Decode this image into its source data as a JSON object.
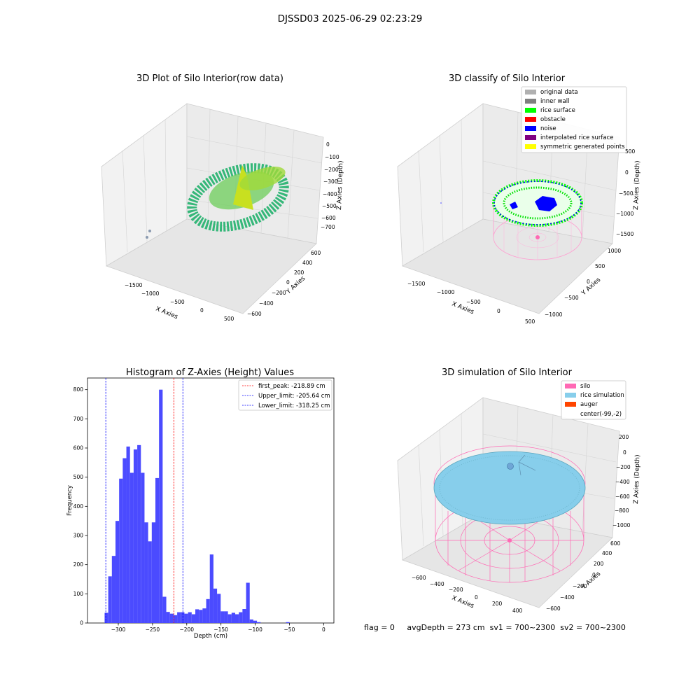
{
  "figure": {
    "suptitle": "DJSSD03 2025-06-29 02:23:29",
    "status_line": "flag = 0     avgDepth = 273 cm  sv1 = 700~2300  sv2 = 700~2300"
  },
  "colors": {
    "silo": "#ff69b4",
    "rice_sim": "#87ceeb",
    "auger": "#ff4500",
    "hist": "#4b4bff",
    "noise": "#0000ff",
    "rice_surface": "#00ff00"
  },
  "panels": {
    "raw": {
      "title": "3D Plot of Silo Interior(row data)",
      "xlabel": "X Axies",
      "ylabel": "Y Axies",
      "zlabel": "Z Axies (Depth)",
      "xticks": [
        "−1500",
        "−1000",
        "−500",
        "0",
        "500"
      ],
      "yticks": [
        "−600",
        "−400",
        "−200",
        "0",
        "200",
        "400",
        "600"
      ],
      "zticks": [
        "0",
        "−100",
        "−200",
        "−300",
        "−400",
        "−500",
        "−600",
        "−700"
      ]
    },
    "classify": {
      "title": "3D classify of Silo Interior",
      "xlabel": "X Axies",
      "ylabel": "Y Axies",
      "zlabel": "Z Axies (Depth)",
      "xticks": [
        "−1500",
        "−1000",
        "−500",
        "0",
        "500"
      ],
      "yticks": [
        "−1000",
        "−500",
        "0",
        "500",
        "1000"
      ],
      "zticks": [
        "500",
        "0",
        "−500",
        "−1000",
        "−1500"
      ],
      "legend": [
        {
          "label": "original data",
          "color": "#b0b0b0"
        },
        {
          "label": "inner wall",
          "color": "#808080"
        },
        {
          "label": "rice surface",
          "color": "#00ff00"
        },
        {
          "label": "obstacle",
          "color": "#ff0000"
        },
        {
          "label": "noise",
          "color": "#0000ff"
        },
        {
          "label": "interpolated rice surface",
          "color": "#800080"
        },
        {
          "label": "symmetric generated points",
          "color": "#ffff00"
        }
      ]
    },
    "simulation": {
      "title": "3D simulation of Silo Interior",
      "xlabel": "X Axies",
      "ylabel": "Y Axies",
      "zlabel": "Z Axies (Depth)",
      "xticks": [
        "−600",
        "−400",
        "−200",
        "0",
        "200",
        "400"
      ],
      "yticks": [
        "−600",
        "−400",
        "−200",
        "0",
        "200",
        "400",
        "600"
      ],
      "zticks": [
        "200",
        "0",
        "−200",
        "−400",
        "−600",
        "−800",
        "−1000"
      ],
      "legend": [
        {
          "label": "silo",
          "color": "#ff69b4"
        },
        {
          "label": "rice simulation",
          "color": "#87ceeb"
        },
        {
          "label": "auger",
          "color": "#ff4500"
        },
        {
          "label": "center(-99,-2)",
          "color": ""
        }
      ]
    }
  },
  "chart_data": {
    "type": "bar",
    "title": "Histogram of Z-Axies (Height) Values",
    "xlabel": "Depth (cm)",
    "ylabel": "Frequency",
    "xlim": [
      -345,
      15
    ],
    "ylim": [
      0,
      840
    ],
    "xticks": [
      -300,
      -250,
      -200,
      -150,
      -100,
      -50,
      0
    ],
    "yticks": [
      0,
      100,
      200,
      300,
      400,
      500,
      600,
      700,
      800
    ],
    "bin_width": 5.3,
    "bin_start": -320,
    "values": [
      35,
      160,
      230,
      350,
      495,
      565,
      605,
      515,
      595,
      610,
      515,
      345,
      280,
      345,
      497,
      800,
      90,
      38,
      32,
      27,
      37,
      37,
      32,
      37,
      30,
      47,
      45,
      50,
      82,
      235,
      118,
      100,
      40,
      40,
      30,
      35,
      30,
      37,
      48,
      138,
      12,
      8,
      3,
      0,
      0,
      0,
      0,
      0,
      0,
      0,
      3
    ],
    "vlines": [
      {
        "label": "first_peak: -218.89 cm",
        "x": -218.89,
        "color": "#ff0000"
      },
      {
        "label": "Upper_limit: -205.64 cm",
        "x": -205.64,
        "color": "#0000ff"
      },
      {
        "label": "Lower_limit: -318.25 cm",
        "x": -318.25,
        "color": "#0000ff"
      }
    ]
  }
}
